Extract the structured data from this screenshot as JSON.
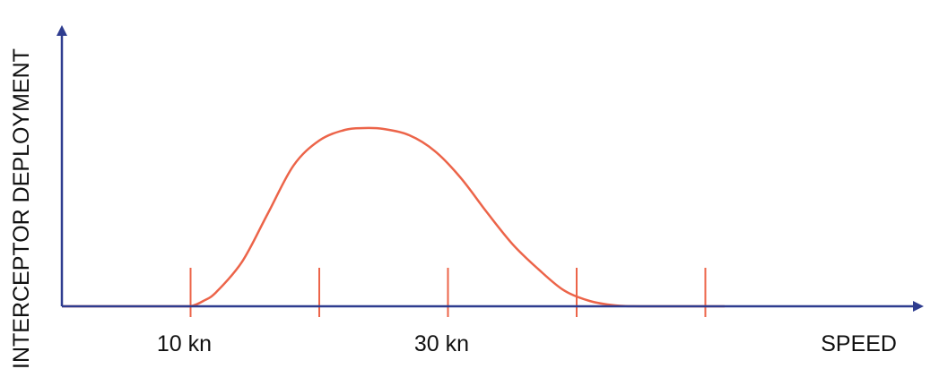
{
  "chart_data": {
    "type": "line",
    "xlabel": "SPEED",
    "ylabel": "INTERCEPTOR DEPLOYMENT",
    "x_tick_labels": [
      {
        "x": 10,
        "label": "10 kn"
      },
      {
        "x": 30,
        "label": "30 kn"
      }
    ],
    "x_ticks": [
      10,
      20,
      30,
      40,
      50
    ],
    "xlim": [
      0,
      67
    ],
    "ylim": [
      0,
      1.05
    ],
    "grid": false,
    "series": [
      {
        "x": [
          0,
          9,
          10,
          11,
          12,
          14,
          16,
          18,
          20,
          22,
          23.5,
          25,
          27,
          29,
          31,
          33,
          35,
          37,
          39,
          41,
          43,
          45,
          51.5
        ],
        "values": [
          0,
          0,
          0,
          0.03,
          0.08,
          0.25,
          0.52,
          0.79,
          0.93,
          0.99,
          1.0,
          0.995,
          0.96,
          0.87,
          0.72,
          0.53,
          0.35,
          0.21,
          0.09,
          0.03,
          0.005,
          0,
          0
        ]
      }
    ],
    "colors": {
      "axis": "#2e3c8f",
      "curve": "#ec6449",
      "tick": "#ec6449",
      "text": "#111111"
    }
  }
}
